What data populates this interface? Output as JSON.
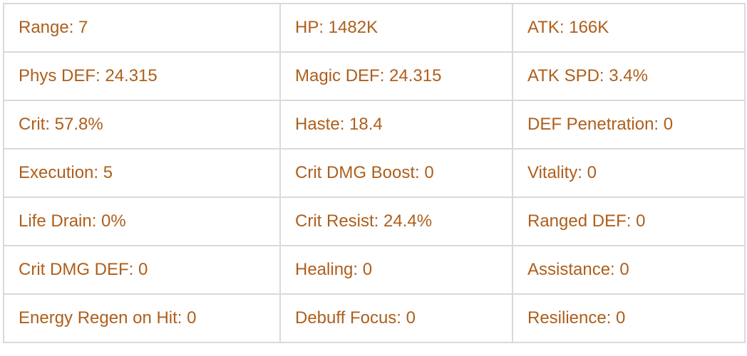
{
  "colors": {
    "text": "#ad5f1c",
    "border": "#d9d9d9",
    "background": "#ffffff"
  },
  "table": {
    "name": "character-stats-table",
    "rows": [
      {
        "cells": [
          "Range: 7",
          "HP: 1482K",
          "ATK: 166K"
        ]
      },
      {
        "cells": [
          "Phys DEF: 24.315",
          "Magic DEF: 24.315",
          "ATK SPD: 3.4%"
        ]
      },
      {
        "cells": [
          "Crit: 57.8%",
          "Haste: 18.4",
          "DEF Penetration: 0"
        ]
      },
      {
        "cells": [
          "Execution: 5",
          "Crit DMG Boost: 0",
          "Vitality: 0"
        ]
      },
      {
        "cells": [
          "Life Drain: 0%",
          "Crit Resist: 24.4%",
          "Ranged DEF: 0"
        ]
      },
      {
        "cells": [
          "Crit DMG DEF: 0",
          "Healing: 0",
          "Assistance: 0"
        ]
      },
      {
        "cells": [
          "Energy Regen on Hit: 0",
          "Debuff Focus: 0",
          "Resilience: 0"
        ]
      }
    ]
  }
}
